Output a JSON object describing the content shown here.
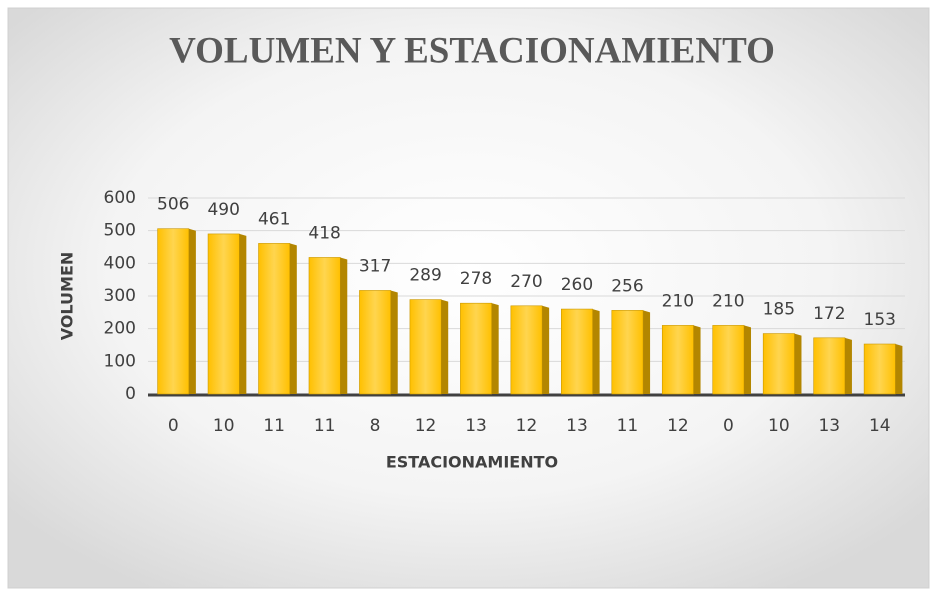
{
  "chart_data": {
    "type": "bar",
    "title": "VOLUMEN Y ESTACIONAMIENTO",
    "x_label": "ESTACIONAMIENTO",
    "y_label": "VOLUMEN",
    "categories": [
      "0",
      "10",
      "11",
      "11",
      "8",
      "12",
      "13",
      "12",
      "13",
      "11",
      "12",
      "0",
      "10",
      "13",
      "14"
    ],
    "values": [
      506,
      490,
      461,
      418,
      317,
      289,
      278,
      270,
      260,
      256,
      210,
      210,
      185,
      172,
      153
    ],
    "color": "#ffc000",
    "ylim": [
      0,
      600
    ],
    "yticks": [
      0,
      100,
      200,
      300,
      400,
      500,
      600
    ],
    "grid": true
  }
}
